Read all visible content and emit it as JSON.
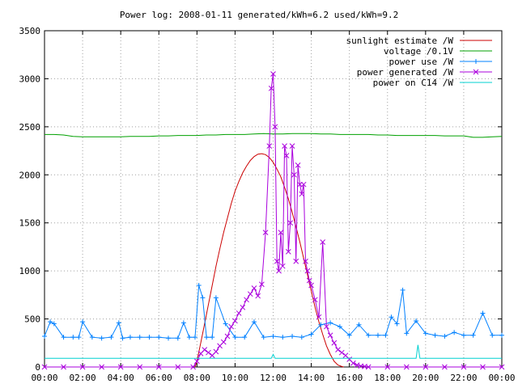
{
  "chart_data": {
    "type": "line",
    "title": "Power log: 2008-01-11 generated/kWh=6.2 used/kWh=9.2",
    "xlabel": "",
    "ylabel": "",
    "x_range_hours": [
      0,
      24
    ],
    "ylim": [
      0,
      3500
    ],
    "grid": true,
    "legend_position": "top-right",
    "x_tick_labels": [
      "00:00",
      "02:00",
      "04:00",
      "06:00",
      "08:00",
      "10:00",
      "12:00",
      "14:00",
      "16:00",
      "18:00",
      "20:00",
      "22:00",
      "00:00"
    ],
    "x_tick_hours": [
      0,
      2,
      4,
      6,
      8,
      10,
      12,
      14,
      16,
      18,
      20,
      22,
      24
    ],
    "y_ticks": [
      0,
      500,
      1000,
      1500,
      2000,
      2500,
      3000,
      3500
    ],
    "series": [
      {
        "name": "sunlight estimate /W",
        "color": "#cc0000",
        "marker": "none",
        "x": [
          7.9,
          8.0,
          8.2,
          8.4,
          8.6,
          8.8,
          9.0,
          9.2,
          9.4,
          9.6,
          9.8,
          10.0,
          10.2,
          10.4,
          10.6,
          10.8,
          11.0,
          11.2,
          11.4,
          11.6,
          11.8,
          12.0,
          12.2,
          12.4,
          12.6,
          12.8,
          13.0,
          13.2,
          13.4,
          13.6,
          13.8,
          14.0,
          14.2,
          14.4,
          14.6,
          14.8,
          15.0,
          15.2,
          15.4,
          15.6,
          15.7
        ],
        "y": [
          0,
          60,
          250,
          450,
          650,
          850,
          1050,
          1230,
          1400,
          1550,
          1700,
          1830,
          1930,
          2020,
          2090,
          2150,
          2190,
          2215,
          2220,
          2210,
          2180,
          2130,
          2060,
          1980,
          1870,
          1750,
          1610,
          1460,
          1300,
          1130,
          960,
          790,
          620,
          470,
          340,
          220,
          130,
          60,
          20,
          5,
          0
        ]
      },
      {
        "name": "voltage /0.1V",
        "color": "#00a000",
        "marker": "none",
        "x": [
          0,
          0.5,
          1.0,
          1.5,
          2.0,
          2.5,
          3.0,
          3.5,
          4.0,
          4.5,
          5.0,
          5.5,
          6.0,
          6.5,
          7.0,
          7.5,
          8.0,
          8.5,
          9.0,
          9.5,
          10.0,
          10.5,
          11.0,
          11.5,
          12.0,
          12.5,
          13.0,
          13.5,
          14.0,
          14.5,
          15.0,
          15.5,
          16.0,
          16.5,
          17.0,
          17.5,
          18.0,
          18.5,
          19.0,
          19.5,
          20.0,
          20.5,
          21.0,
          21.5,
          22.0,
          22.5,
          23.0,
          23.5,
          24.0
        ],
        "y": [
          2420,
          2420,
          2415,
          2400,
          2395,
          2395,
          2395,
          2395,
          2395,
          2400,
          2400,
          2400,
          2405,
          2405,
          2410,
          2410,
          2410,
          2415,
          2415,
          2420,
          2420,
          2420,
          2425,
          2430,
          2425,
          2425,
          2430,
          2430,
          2430,
          2425,
          2425,
          2420,
          2420,
          2420,
          2420,
          2415,
          2415,
          2410,
          2410,
          2410,
          2410,
          2410,
          2405,
          2405,
          2405,
          2390,
          2390,
          2395,
          2400
        ]
      },
      {
        "name": "power use /W",
        "color": "#0080ff",
        "marker": "plus",
        "x": [
          0,
          0.3,
          0.5,
          1.0,
          1.5,
          1.8,
          2.0,
          2.5,
          3.0,
          3.5,
          3.9,
          4.1,
          4.5,
          5.0,
          5.5,
          6.0,
          6.5,
          7.0,
          7.3,
          7.6,
          7.9,
          8.1,
          8.3,
          8.5,
          8.8,
          9.0,
          9.5,
          10.0,
          10.5,
          11.0,
          11.5,
          12.0,
          12.5,
          13.0,
          13.5,
          14.0,
          14.5,
          15.0,
          15.5,
          16.0,
          16.5,
          17.0,
          17.5,
          17.9,
          18.2,
          18.5,
          18.8,
          19.0,
          19.5,
          20.0,
          20.5,
          21.0,
          21.5,
          22.0,
          22.5,
          23.0,
          23.5,
          24.0
        ],
        "y": [
          320,
          470,
          450,
          310,
          310,
          310,
          470,
          310,
          300,
          310,
          460,
          300,
          310,
          310,
          310,
          310,
          300,
          300,
          460,
          310,
          310,
          850,
          720,
          310,
          310,
          720,
          450,
          310,
          310,
          470,
          310,
          320,
          310,
          320,
          310,
          340,
          440,
          460,
          420,
          330,
          440,
          330,
          330,
          330,
          520,
          450,
          800,
          350,
          480,
          350,
          330,
          320,
          360,
          330,
          330,
          560,
          330,
          330
        ]
      },
      {
        "name": "power generated /W",
        "color": "#aa00dd",
        "marker": "cross",
        "x": [
          0,
          1,
          2,
          3,
          4,
          5,
          6,
          7,
          7.8,
          8.0,
          8.2,
          8.4,
          8.6,
          8.8,
          9.0,
          9.2,
          9.4,
          9.6,
          9.8,
          10.0,
          10.2,
          10.4,
          10.6,
          10.8,
          11.0,
          11.2,
          11.4,
          11.6,
          11.8,
          11.9,
          12.0,
          12.1,
          12.2,
          12.3,
          12.4,
          12.5,
          12.6,
          12.7,
          12.8,
          12.9,
          13.0,
          13.1,
          13.2,
          13.3,
          13.4,
          13.5,
          13.6,
          13.7,
          13.8,
          13.9,
          14.0,
          14.2,
          14.4,
          14.6,
          14.8,
          15.0,
          15.2,
          15.4,
          15.6,
          15.8,
          16.0,
          16.2,
          16.4,
          16.6,
          16.8,
          17.0,
          18,
          19,
          20,
          21,
          22,
          23,
          24
        ],
        "y": [
          0,
          0,
          0,
          0,
          0,
          0,
          0,
          0,
          0,
          60,
          140,
          180,
          150,
          120,
          160,
          220,
          260,
          320,
          420,
          480,
          560,
          620,
          700,
          760,
          820,
          740,
          860,
          1400,
          2300,
          2900,
          3050,
          2500,
          1100,
          1000,
          1400,
          1050,
          2300,
          2200,
          1200,
          1500,
          2300,
          2000,
          1100,
          2100,
          1900,
          1800,
          1900,
          1100,
          1000,
          900,
          850,
          700,
          520,
          1300,
          420,
          330,
          250,
          180,
          150,
          120,
          80,
          40,
          20,
          10,
          5,
          0,
          0,
          0,
          0,
          0,
          0,
          0,
          0
        ]
      },
      {
        "name": "power on C14 /W",
        "color": "#00d0d0",
        "marker": "none",
        "x": [
          0,
          4,
          8,
          11.9,
          12.0,
          12.1,
          16,
          19.5,
          19.6,
          19.7,
          24
        ],
        "y": [
          90,
          90,
          90,
          90,
          130,
          90,
          90,
          90,
          230,
          90,
          90
        ]
      }
    ]
  }
}
